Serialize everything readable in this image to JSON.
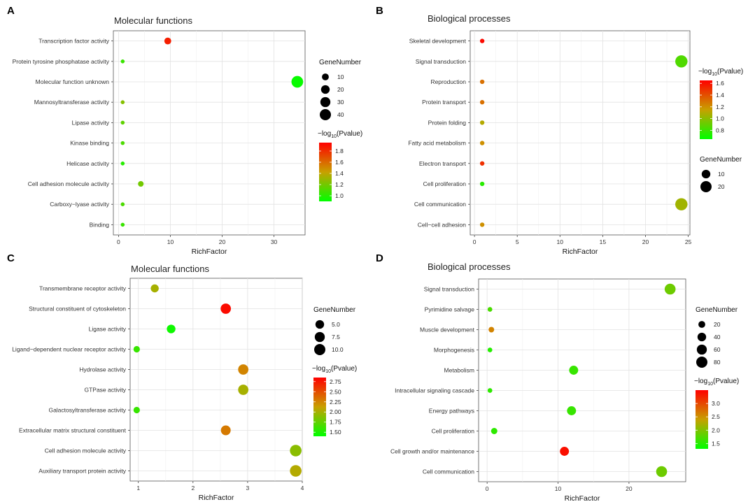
{
  "legend_common": {
    "size_title": "GeneNumber",
    "color_title_prefix": "−log",
    "color_title_sub": "10",
    "color_title_suffix": "(Pvalue)",
    "color_low": "#00ff00",
    "color_mid": "#c8a000",
    "color_high": "#ff0000"
  },
  "chart_data": [
    {
      "panel": "A",
      "type": "scatter",
      "title": "Molecular functions",
      "xlabel": "RichFactor",
      "ylabel": "",
      "xlim": [
        -1,
        36
      ],
      "xticks": [
        0,
        10,
        20,
        30
      ],
      "categories": [
        "Transcription factor activity",
        "Protein tyrosine phosphatase activity",
        "Molecular function unknown",
        "Mannosyltransferase activity",
        "Lipase activity",
        "Kinase binding",
        "Helicase activity",
        "Cell adhesion molecule activity",
        "Carboxy−lyase activity",
        "Binding"
      ],
      "x": [
        9.5,
        0.8,
        34.5,
        0.8,
        0.8,
        0.8,
        0.8,
        4.3,
        0.8,
        0.8
      ],
      "gene_number": [
        10,
        1,
        45,
        1,
        1,
        1,
        1,
        5,
        1,
        1
      ],
      "neg_log10_p": [
        1.85,
        1.05,
        0.92,
        1.25,
        1.15,
        1.1,
        1.0,
        1.2,
        1.1,
        1.05
      ],
      "color_range": [
        0.9,
        1.95
      ],
      "color_ticks": [
        "1.8",
        "1.6",
        "1.4",
        "1.2",
        "1.0"
      ],
      "color_tick_values": [
        1.8,
        1.6,
        1.4,
        1.2,
        1.0
      ],
      "size_legend": [
        "10",
        "20",
        "30",
        "40"
      ],
      "size_legend_values": [
        10,
        20,
        30,
        40
      ],
      "legend_order": "size-first"
    },
    {
      "panel": "B",
      "type": "scatter",
      "title": "Biological processes",
      "xlabel": "RichFactor",
      "ylabel": "",
      "xlim": [
        -0.5,
        25.2
      ],
      "xticks": [
        0,
        5,
        10,
        15,
        20,
        25
      ],
      "categories": [
        "Skeletal development",
        "Signal transduction",
        "Reproduction",
        "Protein transport",
        "Protein folding",
        "Fatty acid metabolism",
        "Electron transport",
        "Cell proliferation",
        "Cell communication",
        "Cell−cell adhesion"
      ],
      "x": [
        0.9,
        24.2,
        0.9,
        0.9,
        0.9,
        0.9,
        0.9,
        0.9,
        24.2,
        0.9
      ],
      "gene_number": [
        1,
        25,
        1,
        1,
        1,
        1,
        1,
        1,
        25,
        1
      ],
      "neg_log10_p": [
        1.62,
        0.85,
        1.3,
        1.3,
        1.1,
        1.2,
        1.5,
        0.75,
        1.05,
        1.2
      ],
      "color_range": [
        0.65,
        1.65
      ],
      "color_ticks": [
        "1.6",
        "1.4",
        "1.2",
        "1.0",
        "0.8"
      ],
      "color_tick_values": [
        1.6,
        1.4,
        1.2,
        1.0,
        0.8
      ],
      "size_legend": [
        "10",
        "20"
      ],
      "size_legend_values": [
        10,
        20
      ],
      "legend_order": "color-first"
    },
    {
      "panel": "C",
      "type": "scatter",
      "title": "Molecular functions",
      "xlabel": "RichFactor",
      "ylabel": "",
      "xlim": [
        0.85,
        4.0
      ],
      "xticks": [
        1,
        2,
        3,
        4
      ],
      "categories": [
        "Transmembrane receptor activity",
        "Structural constituent of cytoskeleton",
        "Ligase activity",
        "Ligand−dependent nuclear receptor activity",
        "Hydrolase activity",
        "GTPase activity",
        "Galactosyltransferase activity",
        "Extracellular matrix structural constituent",
        "Cell adhesion molecule activity",
        "Auxiliary transport protein activity"
      ],
      "x": [
        1.3,
        2.6,
        1.6,
        0.97,
        2.92,
        2.92,
        0.97,
        2.6,
        3.88,
        3.88
      ],
      "gene_number": [
        4,
        8,
        5,
        2,
        8,
        8,
        2,
        7,
        11,
        11
      ],
      "neg_log10_p": [
        2.0,
        2.8,
        1.45,
        1.6,
        2.25,
        2.0,
        1.6,
        2.3,
        1.9,
        2.05
      ],
      "color_range": [
        1.4,
        2.85
      ],
      "color_ticks": [
        "2.75",
        "2.50",
        "2.25",
        "2.00",
        "1.75",
        "1.50"
      ],
      "color_tick_values": [
        2.75,
        2.5,
        2.25,
        2.0,
        1.75,
        1.5
      ],
      "size_legend": [
        "5.0",
        "7.5",
        "10.0"
      ],
      "size_legend_values": [
        5,
        7.5,
        10
      ],
      "legend_order": "size-first"
    },
    {
      "panel": "D",
      "type": "scatter",
      "title": "Biological processes",
      "xlabel": "RichFactor",
      "ylabel": "",
      "xlim": [
        -1.2,
        28
      ],
      "xticks": [
        0,
        10,
        20
      ],
      "categories": [
        "Signal transduction",
        "Pyrimidine salvage",
        "Muscle development",
        "Morphogenesis",
        "Metabolism",
        "Intracellular signaling cascade",
        "Energy pathways",
        "Cell proliferation",
        "Cell growth and/or maintenance",
        "Cell communication"
      ],
      "x": [
        25.8,
        0.4,
        0.6,
        0.4,
        12.2,
        0.4,
        11.9,
        1.0,
        10.9,
        24.6
      ],
      "gene_number": [
        75,
        5,
        10,
        5,
        45,
        5,
        45,
        15,
        45,
        75
      ],
      "neg_log10_p": [
        1.9,
        1.7,
        2.6,
        1.5,
        1.6,
        1.55,
        1.6,
        1.55,
        3.4,
        1.9
      ],
      "color_range": [
        1.3,
        3.5
      ],
      "color_ticks": [
        "3.0",
        "2.5",
        "2.0",
        "1.5"
      ],
      "color_tick_values": [
        3.0,
        2.5,
        2.0,
        1.5
      ],
      "size_legend": [
        "20",
        "40",
        "60",
        "80"
      ],
      "size_legend_values": [
        20,
        40,
        60,
        80
      ],
      "legend_order": "size-first"
    }
  ]
}
